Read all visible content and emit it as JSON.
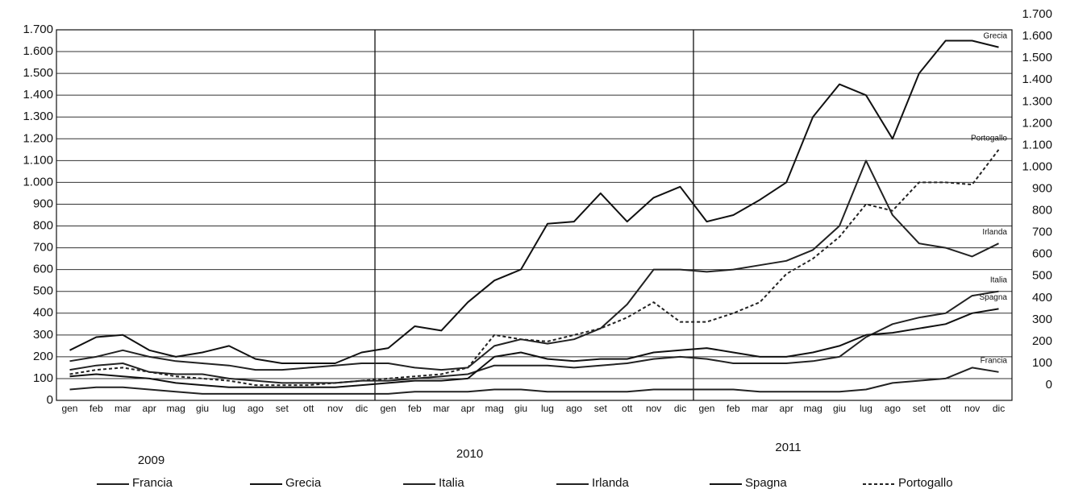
{
  "chart_data": {
    "type": "line",
    "categories": [
      "gen",
      "feb",
      "mar",
      "apr",
      "mag",
      "giu",
      "lug",
      "ago",
      "set",
      "ott",
      "nov",
      "dic",
      "gen",
      "feb",
      "mar",
      "apr",
      "mag",
      "giu",
      "lug",
      "ago",
      "set",
      "ott",
      "nov",
      "dic",
      "gen",
      "feb",
      "mar",
      "apr",
      "mag",
      "giu",
      "lug",
      "ago",
      "set",
      "ott",
      "nov",
      "dic"
    ],
    "year_labels": [
      "2009",
      "2010",
      "2011"
    ],
    "ylim": [
      0,
      1700
    ],
    "yticks": [
      0,
      100,
      200,
      300,
      400,
      500,
      600,
      700,
      800,
      900,
      {
        "value": 1000,
        "label": "1.000"
      },
      {
        "value": 1100,
        "label": "1.100"
      },
      {
        "value": 1200,
        "label": "1.200"
      },
      {
        "value": 1300,
        "label": "1.300"
      },
      {
        "value": 1400,
        "label": "1.400"
      },
      {
        "value": 1500,
        "label": "1.500"
      },
      {
        "value": 1600,
        "label": "1.600"
      },
      {
        "value": 1700,
        "label": "1.700"
      }
    ],
    "y2lim": [
      -70,
      1630
    ],
    "y2ticks": [
      0,
      100,
      200,
      300,
      400,
      500,
      600,
      700,
      800,
      900,
      {
        "value": 1000,
        "label": "1.000"
      },
      {
        "value": 1100,
        "label": "1.100"
      },
      {
        "value": 1200,
        "label": "1.200"
      },
      {
        "value": 1300,
        "label": "1.300"
      },
      {
        "value": 1400,
        "label": "1.400"
      },
      {
        "value": 1500,
        "label": "1.500"
      },
      {
        "value": 1600,
        "label": "1.600"
      },
      {
        "value": 1700,
        "label": "1.700"
      }
    ],
    "grid": true,
    "series": [
      {
        "name": "Francia",
        "color": "#222",
        "dash": false,
        "values": [
          50,
          60,
          60,
          50,
          40,
          30,
          30,
          30,
          30,
          30,
          30,
          30,
          30,
          40,
          40,
          40,
          50,
          50,
          40,
          40,
          40,
          40,
          50,
          50,
          50,
          50,
          40,
          40,
          40,
          40,
          50,
          80,
          90,
          100,
          150,
          130
        ]
      },
      {
        "name": "Grecia",
        "color": "#111",
        "dash": false,
        "values": [
          230,
          290,
          300,
          230,
          200,
          220,
          250,
          190,
          170,
          170,
          170,
          220,
          240,
          340,
          320,
          450,
          550,
          600,
          810,
          820,
          950,
          820,
          930,
          980,
          820,
          850,
          920,
          1000,
          1300,
          1450,
          1400,
          1200,
          1500,
          1650,
          1650,
          1620
        ]
      },
      {
        "name": "Italia",
        "color": "#222",
        "dash": false,
        "values": [
          140,
          160,
          170,
          130,
          120,
          120,
          100,
          90,
          80,
          80,
          80,
          90,
          90,
          100,
          110,
          120,
          160,
          160,
          160,
          150,
          160,
          170,
          190,
          200,
          190,
          170,
          170,
          170,
          180,
          200,
          290,
          350,
          380,
          400,
          480,
          500
        ]
      },
      {
        "name": "Irlanda",
        "color": "#222",
        "dash": false,
        "values": [
          180,
          200,
          230,
          200,
          180,
          170,
          160,
          140,
          140,
          150,
          160,
          170,
          170,
          150,
          140,
          150,
          250,
          280,
          260,
          280,
          330,
          440,
          600,
          600,
          590,
          600,
          620,
          640,
          690,
          800,
          1100,
          850,
          720,
          700,
          660,
          720
        ]
      },
      {
        "name": "Spagna",
        "color": "#111",
        "dash": false,
        "values": [
          110,
          120,
          110,
          100,
          80,
          70,
          60,
          60,
          60,
          60,
          60,
          70,
          80,
          90,
          90,
          100,
          200,
          220,
          190,
          180,
          190,
          190,
          220,
          230,
          240,
          220,
          200,
          200,
          220,
          250,
          300,
          310,
          330,
          350,
          400,
          420
        ]
      },
      {
        "name": "Portogallo",
        "color": "#222",
        "dash": true,
        "values": [
          120,
          140,
          150,
          130,
          110,
          100,
          90,
          70,
          70,
          70,
          80,
          90,
          100,
          110,
          120,
          150,
          300,
          280,
          270,
          300,
          330,
          380,
          450,
          360,
          360,
          400,
          450,
          580,
          650,
          750,
          900,
          870,
          1000,
          1000,
          990,
          1150
        ]
      }
    ]
  }
}
